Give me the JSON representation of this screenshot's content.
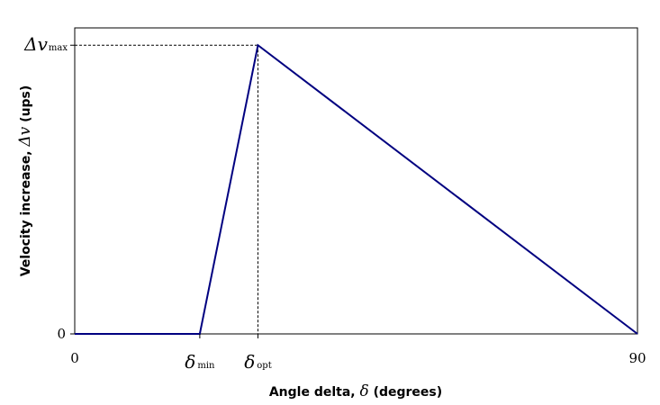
{
  "chart_data": {
    "type": "line",
    "xlabel_prefix": "Angle delta, ",
    "xlabel_symbol": "δ",
    "xlabel_suffix": " (degrees)",
    "ylabel_prefix": "Velocity increase, ",
    "ylabel_symbol": "Δv",
    "ylabel_suffix": " (ups)",
    "x_ticks": [
      {
        "label": "0",
        "value": 0
      },
      {
        "label": "90",
        "value": 90
      }
    ],
    "y_ticks": [
      {
        "label": "0",
        "value": 0
      }
    ],
    "x_annotations": [
      {
        "symbol": "δ",
        "sub": "min",
        "value": 20
      },
      {
        "symbol": "δ",
        "sub": "opt",
        "value": 29.3
      }
    ],
    "y_annotations": [
      {
        "symbol": "Δv",
        "sub": "max",
        "value": 1
      }
    ],
    "xlim": [
      0,
      90
    ],
    "ylim": [
      0,
      1.06
    ],
    "grid": false,
    "series": [
      {
        "color": "#000080",
        "x": [
          0,
          20,
          29.3,
          90
        ],
        "y": [
          0,
          0,
          1,
          0
        ]
      }
    ]
  }
}
